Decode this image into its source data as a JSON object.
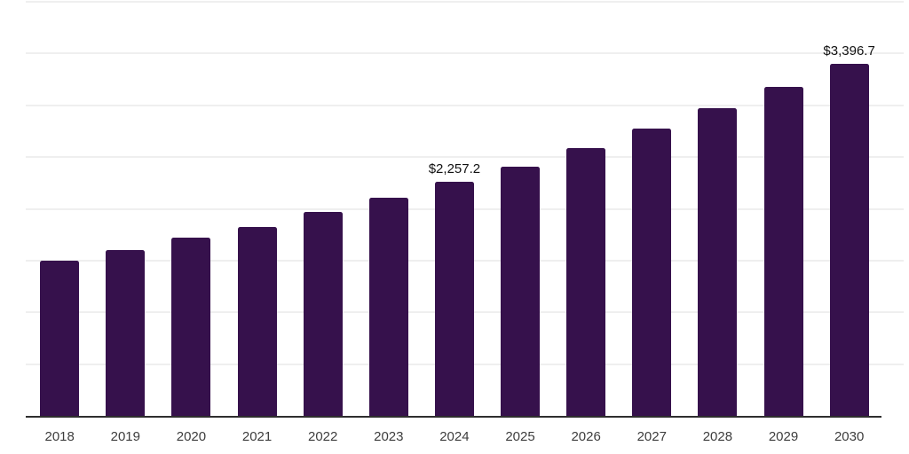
{
  "page": {
    "background_color": "#ffffff"
  },
  "chart_data": {
    "type": "bar",
    "title": "",
    "xlabel": "",
    "ylabel": "",
    "categories": [
      "2018",
      "2019",
      "2020",
      "2021",
      "2022",
      "2023",
      "2024",
      "2025",
      "2026",
      "2027",
      "2028",
      "2029",
      "2030"
    ],
    "values": [
      1495,
      1600,
      1720,
      1828,
      1966,
      2110,
      2257.2,
      2410,
      2590,
      2775,
      2970,
      3180,
      3396.7
    ],
    "value_labels": [
      {
        "category": "2024",
        "text": "$2,257.2"
      },
      {
        "category": "2030",
        "text": "$3,396.7"
      }
    ],
    "ylim": [
      0,
      4000
    ],
    "gridline_step": 500,
    "grid": "horizontal-only",
    "y_tick_labels_visible": false,
    "legend": "none",
    "colors": {
      "bar": "#36114c",
      "gridline": "#efefef",
      "axis_line": "#2e2e2e",
      "tick_label": "#3d3d3d",
      "data_label": "#111111"
    }
  }
}
